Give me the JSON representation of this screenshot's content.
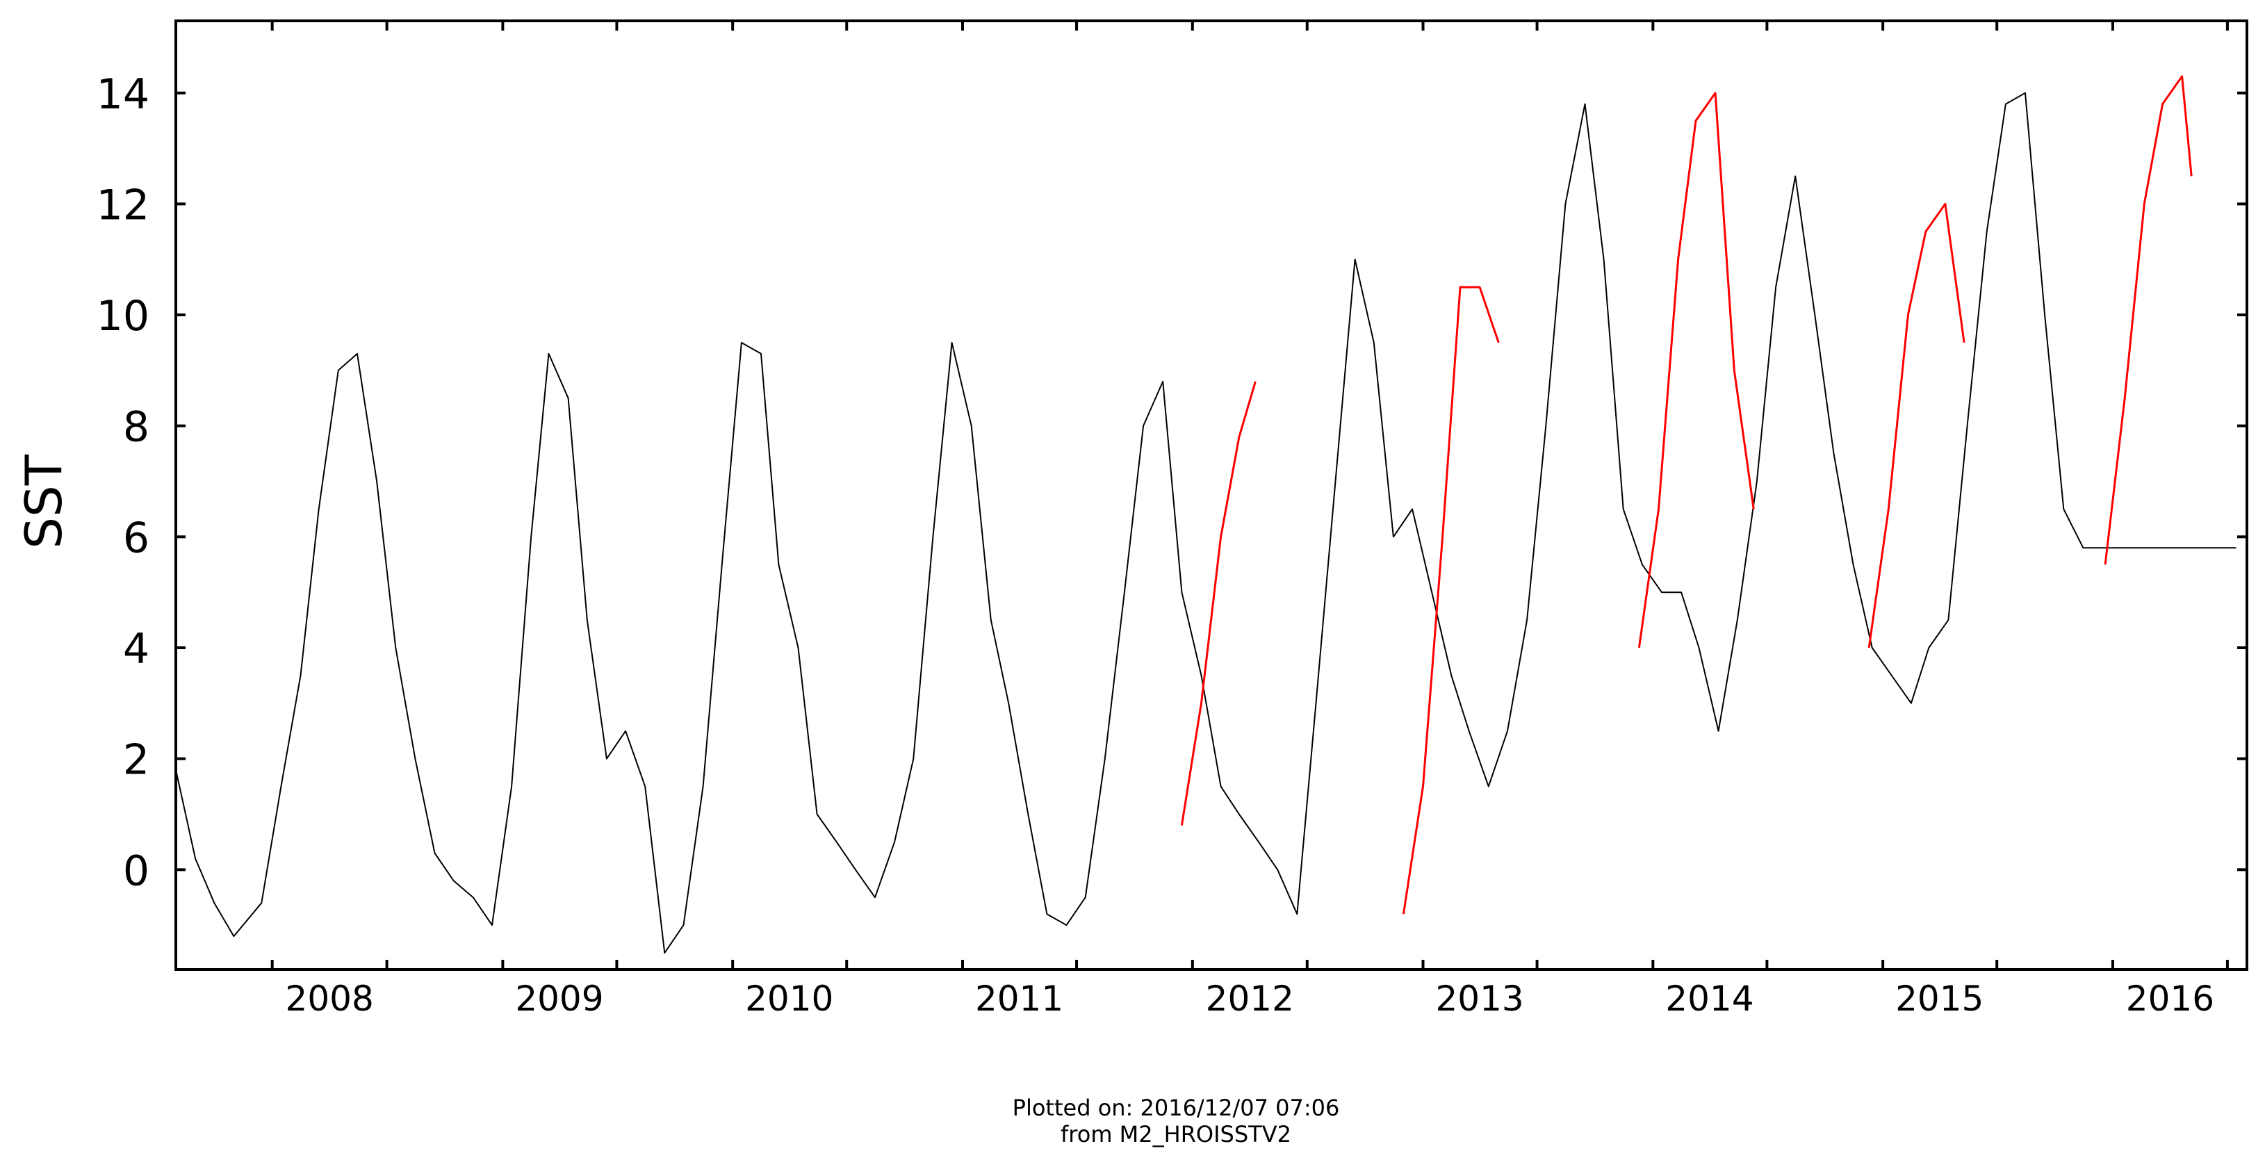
{
  "chart_data": {
    "type": "line",
    "title": "",
    "xlabel": "",
    "ylabel": "SST",
    "xlim": [
      "2007-08-01",
      "2016-08-01"
    ],
    "ylim": [
      -1.8,
      15.3
    ],
    "x_ticks": [
      "2008",
      "2009",
      "2010",
      "2011",
      "2012",
      "2013",
      "2014",
      "2015",
      "2016"
    ],
    "y_ticks": [
      0,
      2,
      4,
      6,
      8,
      10,
      12,
      14
    ],
    "grid": false,
    "legend": "none",
    "series": [
      {
        "color": "#000000",
        "x": [
          "2007-08-01",
          "2007-09-01",
          "2007-10-01",
          "2007-11-01",
          "2007-12-15",
          "2008-01-15",
          "2008-02-15",
          "2008-03-15",
          "2008-04-15",
          "2008-05-15",
          "2008-06-15",
          "2008-07-15",
          "2008-08-15",
          "2008-09-15",
          "2008-10-15",
          "2008-11-15",
          "2008-12-15",
          "2009-01-15",
          "2009-02-15",
          "2009-03-15",
          "2009-04-15",
          "2009-05-15",
          "2009-06-15",
          "2009-07-15",
          "2009-08-15",
          "2009-09-15",
          "2009-10-15",
          "2009-11-15",
          "2009-12-15",
          "2010-01-15",
          "2010-02-15",
          "2010-03-15",
          "2010-04-15",
          "2010-05-15",
          "2010-06-15",
          "2010-07-15",
          "2010-08-15",
          "2010-09-15",
          "2010-10-15",
          "2010-11-15",
          "2010-12-15",
          "2011-01-15",
          "2011-02-15",
          "2011-03-15",
          "2011-04-15",
          "2011-05-15",
          "2011-06-15",
          "2011-07-15",
          "2011-08-15",
          "2011-09-15",
          "2011-10-15",
          "2011-11-15",
          "2011-12-15",
          "2012-01-15",
          "2012-02-15",
          "2012-03-15",
          "2012-04-15",
          "2012-05-15",
          "2012-06-15",
          "2012-07-15",
          "2012-08-15",
          "2012-09-15",
          "2012-10-15",
          "2012-11-15",
          "2012-12-15",
          "2013-01-15",
          "2013-02-15",
          "2013-03-15",
          "2013-04-15",
          "2013-05-15",
          "2013-06-15",
          "2013-07-15",
          "2013-08-15",
          "2013-09-15",
          "2013-10-15",
          "2013-11-15",
          "2013-12-15",
          "2014-01-15",
          "2014-02-15",
          "2014-03-15",
          "2014-04-15",
          "2014-05-15",
          "2014-06-15",
          "2014-07-15",
          "2014-08-15",
          "2014-09-15",
          "2014-10-15",
          "2014-11-15",
          "2014-12-15",
          "2015-01-15",
          "2015-02-15",
          "2015-03-15",
          "2015-04-15",
          "2015-05-15",
          "2015-06-15",
          "2015-07-15",
          "2015-08-15",
          "2015-09-15",
          "2015-10-15",
          "2015-11-15",
          "2015-12-15",
          "2016-01-15",
          "2016-02-15",
          "2016-03-15",
          "2016-04-15",
          "2016-05-15",
          "2016-06-15",
          "2016-07-15"
        ],
        "y": [
          1.8,
          0.2,
          -0.6,
          -1.2,
          -0.6,
          1.5,
          3.5,
          6.5,
          9.0,
          9.3,
          7.0,
          4.0,
          2.0,
          0.3,
          -0.2,
          -0.5,
          -1.0,
          1.5,
          6.0,
          9.3,
          8.5,
          4.5,
          2.0,
          2.5,
          1.5,
          -1.5,
          -1.0,
          1.5,
          5.5,
          9.5,
          9.3,
          5.5,
          4.0,
          1.0,
          0.5,
          0.0,
          -0.5,
          0.5,
          2.0,
          6.0,
          9.5,
          8.0,
          4.5,
          3.0,
          1.0,
          -0.8,
          -1.0,
          -0.5,
          2.0,
          5.0,
          8.0,
          8.8,
          5.0,
          3.5,
          1.5,
          1.0,
          0.5,
          0.0,
          -0.8,
          3.0,
          7.0,
          11.0,
          9.5,
          6.0,
          6.5,
          5.0,
          3.5,
          2.5,
          1.5,
          2.5,
          4.5,
          8.0,
          12.0,
          13.8,
          11.0,
          6.5,
          5.5,
          5.0,
          5.0,
          4.0,
          2.5,
          4.5,
          7.0,
          10.5,
          12.5,
          10.0,
          7.5,
          5.5,
          4.0,
          3.5,
          3.0,
          4.0,
          4.5,
          8.0,
          11.5,
          13.8,
          14.0,
          10.0,
          6.5,
          5.8,
          5.8,
          5.8,
          5.8,
          5.8,
          5.8,
          5.8,
          5.8,
          5.8
        ]
      },
      {
        "color": "#ff0000",
        "x": [
          "2011-12-15",
          "2012-01-15",
          "2012-02-15",
          "2012-03-15",
          "2012-04-10"
        ],
        "y": [
          0.8,
          3.0,
          6.0,
          7.8,
          8.8
        ]
      },
      {
        "color": "#ff0000",
        "x": [
          "2012-12-01",
          "2013-01-01",
          "2013-02-01",
          "2013-03-01",
          "2013-04-01",
          "2013-05-01"
        ],
        "y": [
          -0.8,
          1.5,
          6.0,
          10.5,
          10.5,
          9.5
        ]
      },
      {
        "color": "#ff0000",
        "x": [
          "2013-12-10",
          "2014-01-10",
          "2014-02-10",
          "2014-03-10",
          "2014-04-10",
          "2014-05-10",
          "2014-06-10"
        ],
        "y": [
          4.0,
          6.5,
          11.0,
          13.5,
          14.0,
          9.0,
          6.5
        ]
      },
      {
        "color": "#ff0000",
        "x": [
          "2014-12-10",
          "2015-01-10",
          "2015-02-10",
          "2015-03-10",
          "2015-04-10",
          "2015-05-10"
        ],
        "y": [
          4.0,
          6.5,
          10.0,
          11.5,
          12.0,
          9.5
        ]
      },
      {
        "color": "#ff0000",
        "x": [
          "2015-12-20",
          "2016-01-20",
          "2016-02-20",
          "2016-03-20",
          "2016-04-20",
          "2016-05-05"
        ],
        "y": [
          5.5,
          8.5,
          12.0,
          13.8,
          14.3,
          12.5
        ]
      }
    ]
  },
  "footer": {
    "line1": "Plotted on: 2016/12/07 07:06",
    "line2": "from M2_HROISSTV2"
  }
}
